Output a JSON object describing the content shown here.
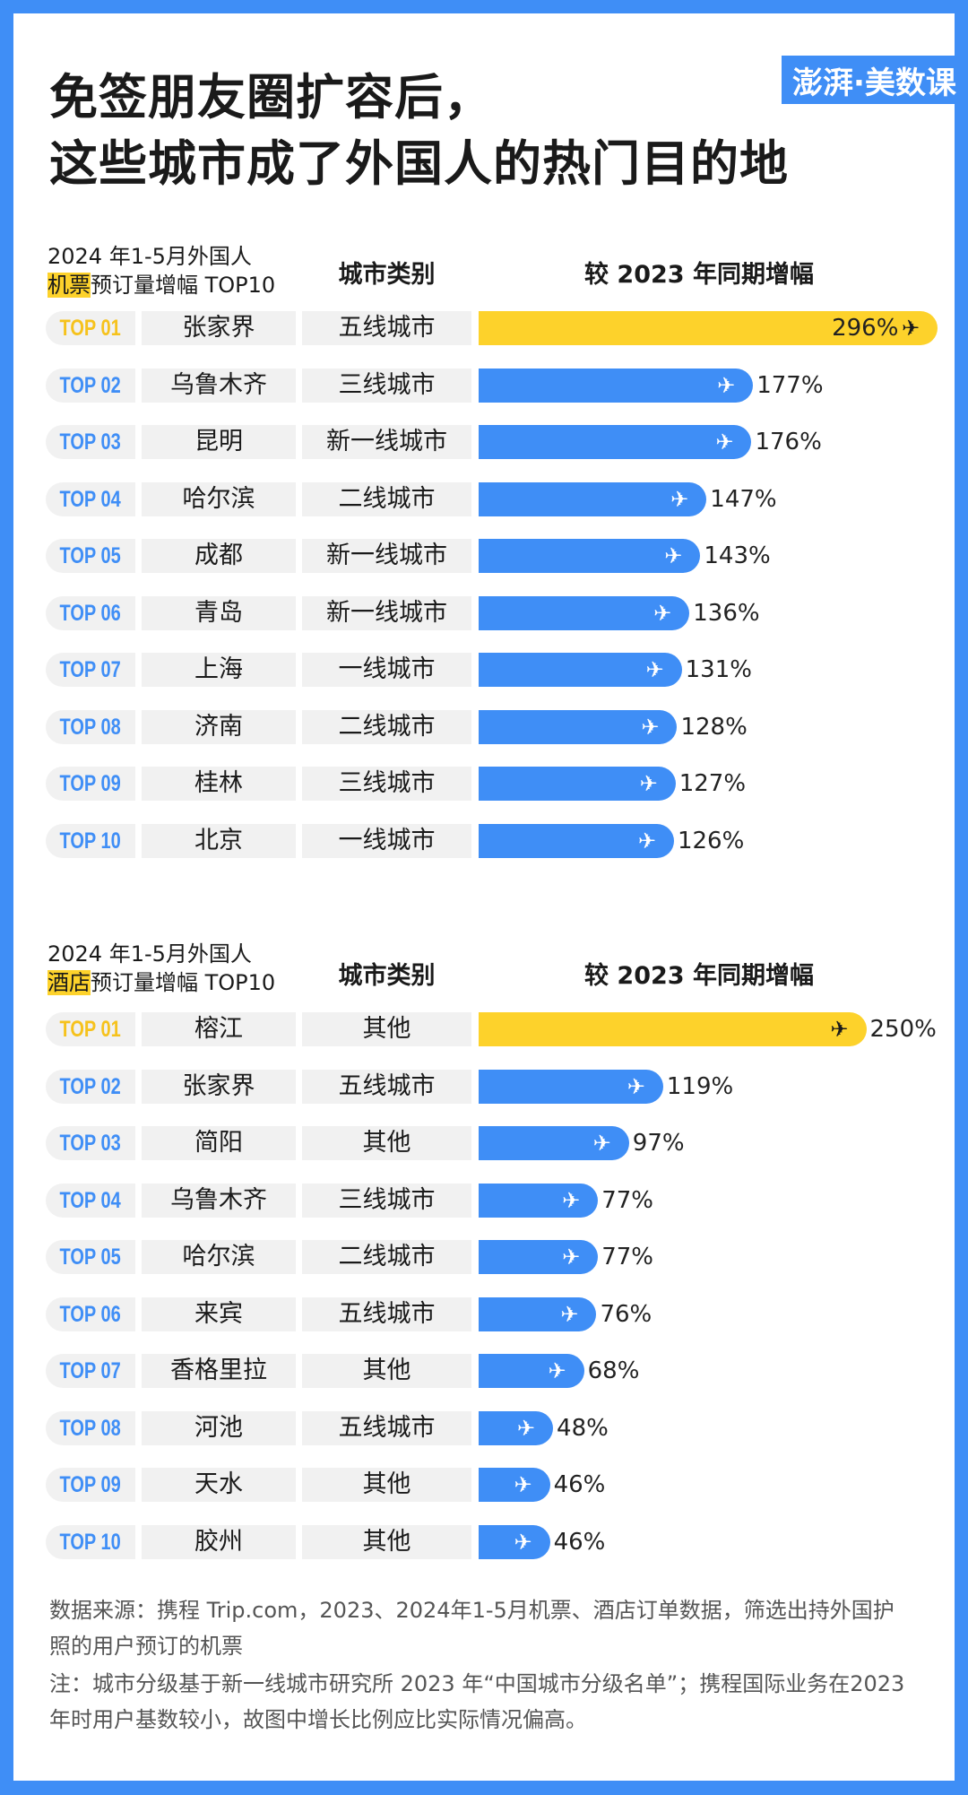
{
  "title_line1": "免签朋友圈扩容后，",
  "title_line2": "这些城市成了外国人的热门目的地",
  "logo_text": "澎湃·美数课",
  "colors": {
    "blue": "#3f8ef6",
    "yellow": "#fdd22b",
    "rank_top1": "#f6c21c"
  },
  "chart_data": [
    {
      "type": "bar",
      "title_line1": "2024 年1-5月外国人",
      "title_highlight": "机票",
      "title_rest": "预订量增幅 TOP10",
      "col_category": "城市类别",
      "col_value": "较 2023 年同期增幅",
      "unit": "%",
      "ranks": [
        "TOP 01",
        "TOP 02",
        "TOP 03",
        "TOP 04",
        "TOP 05",
        "TOP 06",
        "TOP 07",
        "TOP 08",
        "TOP 09",
        "TOP 10"
      ],
      "categories": [
        "张家界",
        "乌鲁木齐",
        "昆明",
        "哈尔滨",
        "成都",
        "青岛",
        "上海",
        "济南",
        "桂林",
        "北京"
      ],
      "city_types": [
        "五线城市",
        "三线城市",
        "新一线城市",
        "二线城市",
        "新一线城市",
        "新一线城市",
        "一线城市",
        "二线城市",
        "三线城市",
        "一线城市"
      ],
      "values": [
        296,
        177,
        176,
        147,
        143,
        136,
        131,
        128,
        127,
        126
      ],
      "labels": [
        "296%",
        "177%",
        "176%",
        "147%",
        "143%",
        "136%",
        "131%",
        "128%",
        "127%",
        "126%"
      ]
    },
    {
      "type": "bar",
      "title_line1": "2024 年1-5月外国人",
      "title_highlight": "酒店",
      "title_rest": "预订量增幅 TOP10",
      "col_category": "城市类别",
      "col_value": "较 2023 年同期增幅",
      "unit": "%",
      "ranks": [
        "TOP 01",
        "TOP 02",
        "TOP 03",
        "TOP 04",
        "TOP 05",
        "TOP 06",
        "TOP 07",
        "TOP 08",
        "TOP 09",
        "TOP 10"
      ],
      "categories": [
        "榕江",
        "张家界",
        "简阳",
        "乌鲁木齐",
        "哈尔滨",
        "来宾",
        "香格里拉",
        "河池",
        "天水",
        "胶州"
      ],
      "city_types": [
        "其他",
        "五线城市",
        "其他",
        "三线城市",
        "二线城市",
        "五线城市",
        "其他",
        "五线城市",
        "其他",
        "其他"
      ],
      "values": [
        250,
        119,
        97,
        77,
        77,
        76,
        68,
        48,
        46,
        46
      ],
      "labels": [
        "250%",
        "119%",
        "97%",
        "77%",
        "77%",
        "76%",
        "68%",
        "48%",
        "46%",
        "46%"
      ]
    }
  ],
  "footer": {
    "source": "数据来源：携程 Trip.com，2023、2024年1-5月机票、酒店订单数据，筛选出持外国护照的用户预订的机票",
    "note": "注：城市分级基于新一线城市研究所 2023 年“中国城市分级名单”；携程国际业务在2023年时用户基数较小，故图中增长比例应比实际情况偏高。"
  }
}
